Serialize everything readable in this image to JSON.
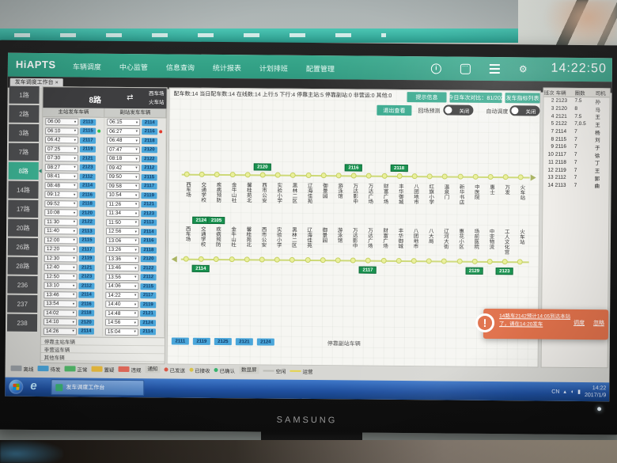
{
  "app": {
    "brand": "HiAPTS",
    "menu": [
      "车辆调度",
      "中心监管",
      "信息查询",
      "统计报表",
      "计划排班",
      "配置管理"
    ],
    "clock": "14:22:50",
    "tab_label": "发车调度工作台",
    "tab_close": "×"
  },
  "sidebar": {
    "routes": [
      "1路",
      "2路",
      "3路",
      "7路",
      "8路",
      "14路",
      "17路",
      "20路",
      "26路",
      "28路",
      "236",
      "237",
      "238"
    ],
    "selected_index": 4
  },
  "schedule": {
    "route": "8路",
    "swap_icon": "⇄",
    "terminal_from": "西车场",
    "terminal_to": "火车站",
    "main_header": "主站发车车辆",
    "sub_header": "副站发车车辆",
    "main": [
      [
        "06:00",
        "2113"
      ],
      [
        "06:10",
        "2115"
      ],
      [
        "06:42",
        "2117"
      ],
      [
        "07:25",
        "2119"
      ],
      [
        "07:30",
        "2121"
      ],
      [
        "08:27",
        "2123"
      ],
      [
        "08:41",
        "2112"
      ],
      [
        "08:48",
        "2114"
      ],
      [
        "09:12",
        "2116"
      ],
      [
        "09:52",
        "2118"
      ],
      [
        "10:08",
        "2120"
      ],
      [
        "11:30",
        "2122"
      ],
      [
        "11:40",
        "2113"
      ],
      [
        "12:00",
        "2115"
      ],
      [
        "12:20",
        "2117"
      ],
      [
        "12:30",
        "2119"
      ],
      [
        "12:40",
        "2121"
      ],
      [
        "12:50",
        "2123"
      ],
      [
        "13:10",
        "2112"
      ],
      [
        "13:46",
        "2114"
      ],
      [
        "13:54",
        "2116"
      ],
      [
        "14:02",
        "2118"
      ],
      [
        "14:10",
        "2120"
      ],
      [
        "14:26",
        "2114"
      ]
    ],
    "sub": [
      [
        "06:15",
        "2114"
      ],
      [
        "06:27",
        "2116"
      ],
      [
        "06:48",
        "2118"
      ],
      [
        "07:47",
        "2120"
      ],
      [
        "08:18",
        "2122"
      ],
      [
        "09:42",
        "2112"
      ],
      [
        "09:50",
        "2115"
      ],
      [
        "09:58",
        "2117"
      ],
      [
        "10:54",
        "2119"
      ],
      [
        "11:26",
        "2121"
      ],
      [
        "11:34",
        "2123"
      ],
      [
        "11:50",
        "2113"
      ],
      [
        "12:56",
        "2114"
      ],
      [
        "13:06",
        "2116"
      ],
      [
        "13:26",
        "2118"
      ],
      [
        "13:36",
        "2120"
      ],
      [
        "13:46",
        "2122"
      ],
      [
        "13:56",
        "2112"
      ],
      [
        "14:06",
        "2115"
      ],
      [
        "14:22",
        "2117"
      ],
      [
        "14:40",
        "2119"
      ],
      [
        "14:48",
        "2121"
      ],
      [
        "14:56",
        "2124"
      ],
      [
        "15:04",
        "2114"
      ]
    ],
    "main_dots": {
      "1": "#35c04d"
    },
    "sub_dots": {
      "1": "#e23b2e"
    },
    "footer_rows": [
      "停靠主站车辆",
      "非营运车辆",
      "其他车辆"
    ]
  },
  "stats": {
    "segments": [
      "配车数:14",
      "当日配车数:14",
      "在线数:14",
      "上行:5",
      "下行:4",
      "停靠主站:5",
      "停靠副站:0",
      "非营运:0",
      "其他:0"
    ],
    "button1": "提示信息",
    "button2": "今日车次对比：81/202",
    "button3": "发车指标列表",
    "view_button": "退出查看",
    "toggle1_label": "回场预测",
    "toggle1_state": "关闭",
    "toggle2_label": "自动调度",
    "toggle2_state": "关闭"
  },
  "route_map": {
    "up_stations": [
      "西车场",
      "交通学校",
      "疾病预防",
      "金牛山社",
      "馨桂苑北",
      "西市公安",
      "实验小学",
      "黑林二区",
      "辽海佳苑",
      "御景园",
      "游泳馆",
      "万达影中",
      "万达广场",
      "财富广场",
      "丰华御城",
      "八团地市",
      "红旗小学",
      "温泉门",
      "新华书店",
      "中医院",
      "惠士",
      "万发",
      "火车站"
    ],
    "up_vehicles": [
      {
        "station_index": 5,
        "vehicle": "2120"
      },
      {
        "station_index": 11,
        "vehicle": "2116"
      },
      {
        "station_index": 14,
        "vehicle": "2118"
      }
    ],
    "down_stations": [
      "西车场",
      "交通学校",
      "疾病预防",
      "金牛山社",
      "馨桂苑北",
      "西市公安",
      "实验小学",
      "黑林二区",
      "辽海佳苑",
      "御景园",
      "游泳馆",
      "万达影中",
      "万达广场",
      "财富广场",
      "丰华御城",
      "八团地市",
      "八大局",
      "辽河大街",
      "惠花小区",
      "场前医院",
      "中亚物流",
      "工人文化宫",
      "火车站"
    ],
    "down_vehicles_above": [
      {
        "station_index": 1,
        "vehicle": "2124"
      },
      {
        "station_index": 2,
        "vehicle": "2105"
      }
    ],
    "down_vehicles_below": [
      {
        "station_index": 1,
        "vehicle": "2114"
      },
      {
        "station_index": 12,
        "vehicle": "2117"
      },
      {
        "station_index": 19,
        "vehicle": "2129"
      },
      {
        "station_index": 21,
        "vehicle": "2123"
      }
    ],
    "parked_vehicles": [
      "2111",
      "2119",
      "2125",
      "2121",
      "2124"
    ],
    "sub_station_label": "停靠副站车辆"
  },
  "vehicle_table": {
    "headers": [
      "班次",
      "车辆",
      "圈数",
      "司机"
    ],
    "rows": [
      [
        "2",
        "2123",
        "7.5",
        "孙"
      ],
      [
        "3",
        "2120",
        "8",
        "马"
      ],
      [
        "4",
        "2121",
        "7.5",
        "王"
      ],
      [
        "5",
        "2122",
        "7,0.5",
        "王"
      ],
      [
        "7",
        "2114",
        "7",
        "杨"
      ],
      [
        "8",
        "2115",
        "7",
        "刘"
      ],
      [
        "9",
        "2116",
        "7",
        "于"
      ],
      [
        "10",
        "2117",
        "7",
        "徐"
      ],
      [
        "11",
        "2118",
        "7",
        "丁"
      ],
      [
        "12",
        "2119",
        "7",
        "王"
      ],
      [
        "13",
        "2112",
        "7",
        "郭"
      ],
      [
        "14",
        "2113",
        "7",
        "曲"
      ]
    ]
  },
  "alert": {
    "icon": "!",
    "message": "14路车2142预计14:05到达本站了，请在14:20发车",
    "action_primary": "调度",
    "action_secondary": "忽略"
  },
  "legend": {
    "items": [
      {
        "type": "swatch",
        "color": "#9ba1a7",
        "label": "离线"
      },
      {
        "type": "swatch",
        "color": "#4aa4d9",
        "label": "待发"
      },
      {
        "type": "swatch",
        "color": "#52b96a",
        "label": "正常"
      },
      {
        "type": "swatch",
        "color": "#e9bb3e",
        "label": "置疑"
      },
      {
        "type": "swatch",
        "color": "#e26a5a",
        "label": "违规"
      },
      {
        "type": "chip",
        "label": "通知"
      },
      {
        "type": "dot",
        "color": "#d85847",
        "label": "已发送"
      },
      {
        "type": "dot",
        "color": "#d8c24a",
        "label": "已接收"
      },
      {
        "type": "dot",
        "color": "#37b26d",
        "label": "已确认"
      },
      {
        "type": "chip",
        "label": "数显屏"
      },
      {
        "type": "line",
        "color": "#bcbcb6",
        "label": "空闲"
      },
      {
        "type": "line",
        "color": "#e5d44b",
        "label": "运营"
      }
    ]
  },
  "taskbar": {
    "app_label": "发车调度工作台",
    "ie_glyph": "e",
    "tray_lang": "CN",
    "time": "14:22",
    "date": "2017/1/9"
  },
  "monitor": {
    "brand": "SAMSUNG"
  },
  "colors": {
    "accent_teal": "#38a88c",
    "badge_blue": "#4aa6da",
    "marker_green": "#18934f",
    "alert_orange": "#e0714b"
  }
}
